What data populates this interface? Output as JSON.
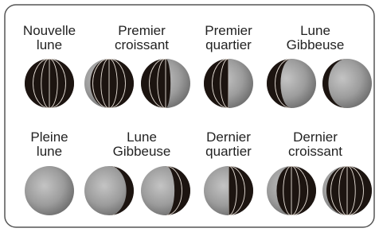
{
  "rows": [
    {
      "labels": [
        {
          "lines": [
            "Nouvelle",
            "lune"
          ]
        },
        {
          "lines": [
            "Premier",
            "croissant"
          ]
        },
        {
          "lines": [
            "Premier",
            "quartier"
          ]
        },
        {
          "lines": [
            "Lune",
            "Gibbeuse"
          ]
        }
      ]
    },
    {
      "labels": [
        {
          "lines": [
            "Pleine",
            "lune"
          ]
        },
        {
          "lines": [
            "Lune",
            "Gibbeuse"
          ]
        },
        {
          "lines": [
            "Dernier",
            "quartier"
          ]
        },
        {
          "lines": [
            "Dernier",
            "croissant"
          ]
        }
      ]
    }
  ]
}
